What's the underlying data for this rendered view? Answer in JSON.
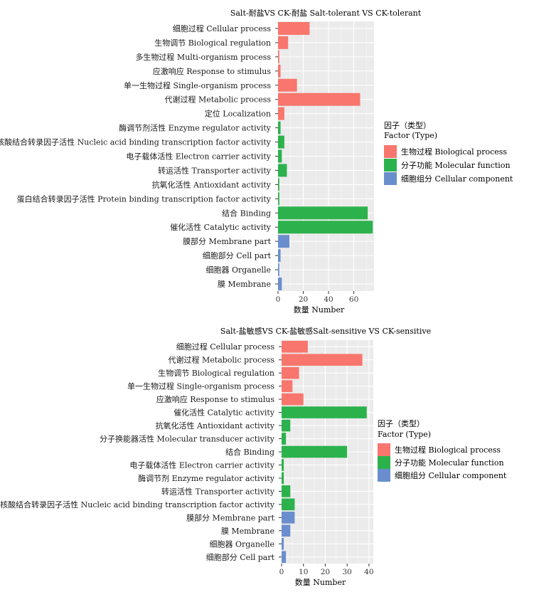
{
  "colors": {
    "biological": "#F8766D",
    "molecular": "#2BB24C",
    "cellular": "#6A8ECD",
    "panel": "#EBEBEB",
    "grid": "#FFFFFF"
  },
  "legend": {
    "title_line1": "因子（类型）",
    "title_line2": "Factor (Type)",
    "entries": [
      {
        "key": "biological",
        "label": "生物过程 Biological process"
      },
      {
        "key": "molecular",
        "label": "分子功能 Molecular function"
      },
      {
        "key": "cellular",
        "label": "细胞组分 Cellular component"
      }
    ]
  },
  "chart_data": [
    {
      "type": "bar",
      "orientation": "horizontal",
      "title": "Salt-耐盐VS CK-耐盐 Salt-tolerant VS CK-tolerant",
      "xlabel": "数量 Number",
      "xlim": [
        0,
        76
      ],
      "xticks": [
        0,
        20,
        40,
        60
      ],
      "categories": [
        "细胞过程 Cellular process",
        "生物调节 Biological regulation",
        "多生物过程 Multi-organism process",
        "应激响应 Response to stimulus",
        "单一生物过程 Single-organism process",
        "代谢过程 Metabolic process",
        "定位 Localization",
        "酶调节剂活性 Enzyme regulator activity",
        "核酸结合转录因子活性 Nucleic acid binding transcription factor activity",
        "电子载体活性 Electron carrier activity",
        "转运活性 Transporter activity",
        "抗氧化活性 Antioxidant activity",
        "蛋白结合转录因子活性 Protein binding transcription factor activity",
        "结合 Binding",
        "催化活性 Catalytic activity",
        "膜部分 Membrane part",
        "细胞部分 Cell part",
        "细胞器 Organelle",
        "膜 Membrane"
      ],
      "values": [
        25,
        8,
        1,
        2,
        15,
        65,
        5,
        2,
        5,
        3,
        7,
        1,
        1,
        71,
        75,
        9,
        2,
        1,
        3
      ],
      "types": [
        "biological",
        "biological",
        "biological",
        "biological",
        "biological",
        "biological",
        "biological",
        "molecular",
        "molecular",
        "molecular",
        "molecular",
        "molecular",
        "molecular",
        "molecular",
        "molecular",
        "cellular",
        "cellular",
        "cellular",
        "cellular"
      ]
    },
    {
      "type": "bar",
      "orientation": "horizontal",
      "title": "Salt-盐敏感VS CK-盐敏感Salt-sensitive VS CK-sensitive",
      "xlabel": "数量 Number",
      "xlim": [
        0,
        42
      ],
      "xticks": [
        0,
        10,
        20,
        30,
        40
      ],
      "categories": [
        "细胞过程 Cellular process",
        "代谢过程 Metabolic process",
        "生物调节 Biological regulation",
        "单一生物过程 Single-organism process",
        "应激响应 Response to stimulus",
        "催化活性 Catalytic activity",
        "抗氧化活性 Antioxidant activity",
        "分子换能器活性 Molecular transducer activity",
        "结合 Binding",
        "电子载体活性 Electron carrier activity",
        "酶调节剂 Enzyme regulator activity",
        "转运活性 Transporter activity",
        "核酸结合转录因子活性 Nucleic acid binding transcription factor activity",
        "膜部分 Membrane part",
        "膜 Membrane",
        "细胞器 Organelle",
        "细胞部分  Cell part"
      ],
      "values": [
        12,
        37,
        8,
        5,
        10,
        39,
        4,
        2,
        30,
        1,
        1,
        4,
        6,
        6,
        4,
        1,
        2
      ],
      "types": [
        "biological",
        "biological",
        "biological",
        "biological",
        "biological",
        "molecular",
        "molecular",
        "molecular",
        "molecular",
        "molecular",
        "molecular",
        "molecular",
        "molecular",
        "cellular",
        "cellular",
        "cellular",
        "cellular"
      ]
    }
  ]
}
